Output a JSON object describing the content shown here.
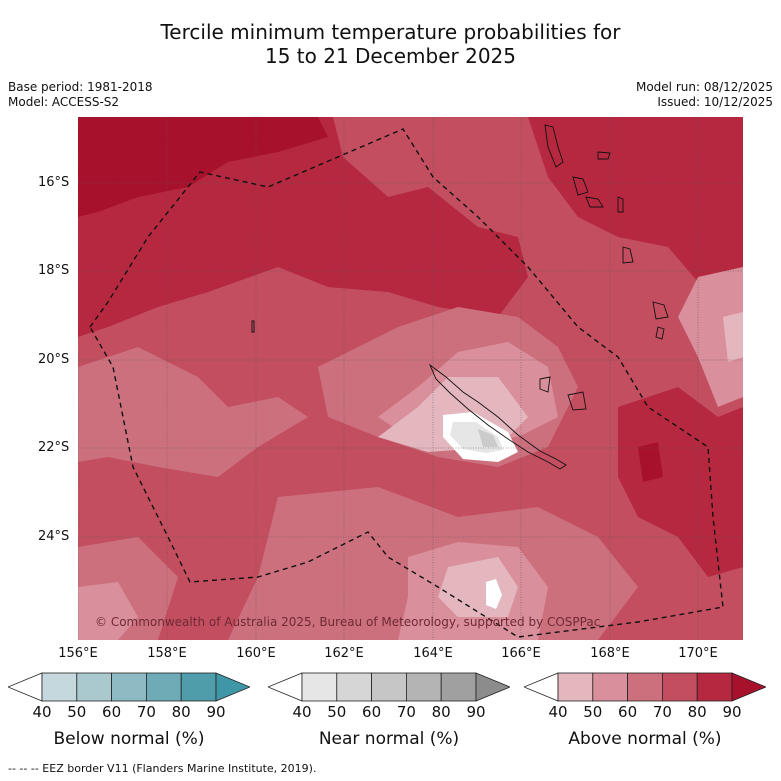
{
  "header": {
    "title_line1": "Tercile minimum temperature probabilities for",
    "title_line2": "15 to 21 December 2025",
    "base_period": "Base period: 1981-2018",
    "model": "Model: ACCESS-S2",
    "model_run": "Model run: 08/12/2025",
    "issued": "Issued: 10/12/2025"
  },
  "map": {
    "lat_labels": [
      "16°S",
      "18°S",
      "20°S",
      "22°S",
      "24°S"
    ],
    "lon_labels": [
      "156°E",
      "158°E",
      "160°E",
      "162°E",
      "164°E",
      "166°E",
      "168°E",
      "170°E"
    ],
    "copyright": "© Commonwealth of Australia 2025, Bureau of Meteorology, supported by COSPPac",
    "colors": {
      "above_40": "#e4b7bf",
      "above_50": "#d98f9c",
      "above_60": "#cd707e",
      "above_70": "#c24e5f",
      "above_80": "#b6283f",
      "above_90": "#a8112c",
      "near_40": "#e6e6e6",
      "near_50": "#d9d9d9",
      "near_60": "#cbcbcb"
    }
  },
  "colorbars": [
    {
      "label": "Below normal (%)",
      "ticks": [
        "40",
        "50",
        "60",
        "70",
        "80",
        "90"
      ],
      "colors": [
        "#c4d8dd",
        "#a9c9cf",
        "#8dbac3",
        "#6fabb6",
        "#4f9dab",
        "#3f96a6"
      ]
    },
    {
      "label": "Near normal (%)",
      "ticks": [
        "40",
        "50",
        "60",
        "70",
        "80",
        "90"
      ],
      "colors": [
        "#e6e6e6",
        "#d6d6d6",
        "#c6c6c6",
        "#b4b4b4",
        "#a0a0a0",
        "#8c8c8c"
      ]
    },
    {
      "label": "Above normal (%)",
      "ticks": [
        "40",
        "50",
        "60",
        "70",
        "80",
        "90"
      ],
      "colors": [
        "#e4b7bf",
        "#d98f9c",
        "#cd707e",
        "#c24e5f",
        "#b6283f",
        "#a8112c"
      ]
    }
  ],
  "footer": {
    "eez_note": "--  --  -- EEZ border V11 (Flanders Marine Institute, 2019)."
  }
}
